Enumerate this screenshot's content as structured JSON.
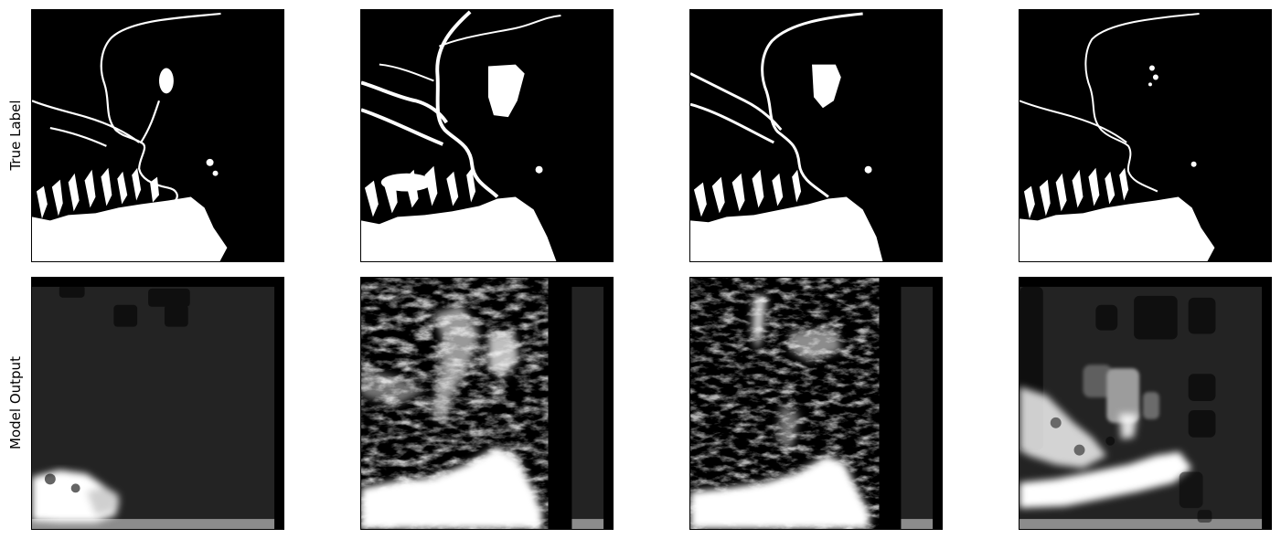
{
  "rows": [
    {
      "label": "True Label"
    },
    {
      "label": "Model Output"
    }
  ],
  "colors": {
    "water": "#ffffff",
    "land": "#000000",
    "pred_bg": "#232323",
    "pred_band": "#8c8c8c"
  }
}
